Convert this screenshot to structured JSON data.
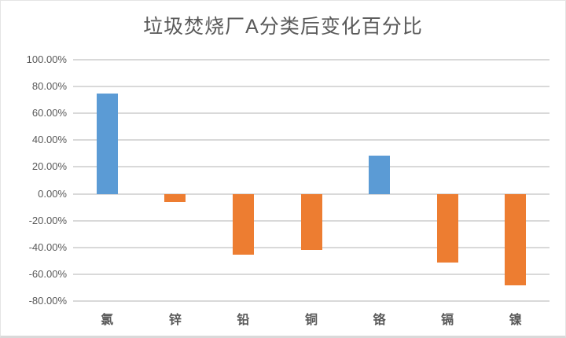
{
  "chart_data": {
    "type": "bar",
    "title": "垃圾焚烧厂A分类后变化百分比",
    "categories": [
      "氯",
      "锌",
      "铅",
      "铜",
      "铬",
      "镉",
      "镍"
    ],
    "values": [
      75,
      -6,
      -45.5,
      -42,
      28.5,
      -51.5,
      -68
    ],
    "value_unit": "percent",
    "xlabel": "",
    "ylabel": "",
    "ylim": [
      -80,
      100
    ],
    "y_tick_step": 20,
    "y_ticks": [
      "100.00%",
      "80.00%",
      "60.00%",
      "40.00%",
      "20.00%",
      "0.00%",
      "-20.00%",
      "-40.00%",
      "-60.00%",
      "-80.00%"
    ],
    "grid": true,
    "legend": false,
    "colors": {
      "positive_bar": "#5B9BD5",
      "negative_bar": "#ED7D31",
      "gridline": "#D9D9D9",
      "text": "#595959",
      "frame_border": "#D9D9D9"
    }
  }
}
